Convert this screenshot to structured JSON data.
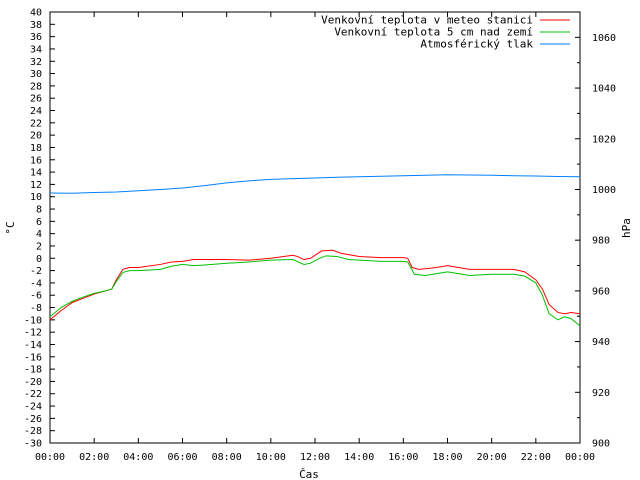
{
  "chart_data": {
    "type": "line",
    "xlabel": "Čas",
    "ylabel_left": "°C",
    "ylabel_right": "hPa",
    "x_ticks": [
      "00:00",
      "02:00",
      "04:00",
      "06:00",
      "08:00",
      "10:00",
      "12:00",
      "14:00",
      "16:00",
      "18:00",
      "20:00",
      "22:00",
      "00:00"
    ],
    "x_range_hours": [
      0,
      24
    ],
    "ylim_left": [
      -30,
      40
    ],
    "y_left_step": 2,
    "ylim_right": [
      900,
      1070
    ],
    "y_right_ticks": [
      900,
      920,
      940,
      960,
      980,
      1000,
      1020,
      1040,
      1060
    ],
    "grid": false,
    "legend_position": "top-right",
    "series": [
      {
        "name": "Venkovní teplota v meteo stanici",
        "color": "#ff0000",
        "axis": "left",
        "points": [
          [
            0,
            -10
          ],
          [
            0.5,
            -8.5
          ],
          [
            1,
            -7.2
          ],
          [
            1.5,
            -6.5
          ],
          [
            2,
            -5.8
          ],
          [
            2.5,
            -5.3
          ],
          [
            2.8,
            -5
          ],
          [
            3,
            -3.5
          ],
          [
            3.3,
            -1.8
          ],
          [
            3.6,
            -1.5
          ],
          [
            4,
            -1.5
          ],
          [
            5,
            -1
          ],
          [
            5.5,
            -0.6
          ],
          [
            6,
            -0.5
          ],
          [
            6.5,
            -0.2
          ],
          [
            8,
            -0.2
          ],
          [
            9,
            -0.3
          ],
          [
            10,
            0
          ],
          [
            11,
            0.5
          ],
          [
            11.2,
            0.3
          ],
          [
            11.5,
            -0.2
          ],
          [
            11.8,
            0
          ],
          [
            12.3,
            1.2
          ],
          [
            12.8,
            1.3
          ],
          [
            13.2,
            0.8
          ],
          [
            14,
            0.3
          ],
          [
            15,
            0.1
          ],
          [
            16,
            0.1
          ],
          [
            16.2,
            0
          ],
          [
            16.4,
            -1.5
          ],
          [
            16.7,
            -1.8
          ],
          [
            17,
            -1.7
          ],
          [
            17.5,
            -1.5
          ],
          [
            18,
            -1.2
          ],
          [
            18.5,
            -1.5
          ],
          [
            19,
            -1.8
          ],
          [
            20,
            -1.8
          ],
          [
            21,
            -1.8
          ],
          [
            21.5,
            -2.2
          ],
          [
            22,
            -3.5
          ],
          [
            22.3,
            -5
          ],
          [
            22.6,
            -7.5
          ],
          [
            23,
            -8.8
          ],
          [
            23.3,
            -9
          ],
          [
            23.6,
            -8.8
          ],
          [
            24,
            -9
          ]
        ]
      },
      {
        "name": "Venkovní teplota 5 cm nad zemí",
        "color": "#00c000",
        "axis": "left",
        "points": [
          [
            0,
            -9.5
          ],
          [
            0.5,
            -8
          ],
          [
            1,
            -7
          ],
          [
            1.5,
            -6.3
          ],
          [
            2,
            -5.7
          ],
          [
            2.5,
            -5.3
          ],
          [
            2.8,
            -5
          ],
          [
            3,
            -3.8
          ],
          [
            3.3,
            -2.3
          ],
          [
            3.6,
            -2
          ],
          [
            4,
            -2
          ],
          [
            5,
            -1.8
          ],
          [
            5.5,
            -1.3
          ],
          [
            6,
            -1
          ],
          [
            6.5,
            -1.2
          ],
          [
            7,
            -1.1
          ],
          [
            8,
            -0.8
          ],
          [
            9,
            -0.6
          ],
          [
            10,
            -0.3
          ],
          [
            11,
            -0.2
          ],
          [
            11.5,
            -1
          ],
          [
            11.8,
            -0.8
          ],
          [
            12.2,
            0
          ],
          [
            12.5,
            0.4
          ],
          [
            13,
            0.3
          ],
          [
            13.5,
            -0.2
          ],
          [
            14,
            -0.3
          ],
          [
            15,
            -0.5
          ],
          [
            16,
            -0.5
          ],
          [
            16.2,
            -0.6
          ],
          [
            16.5,
            -2.6
          ],
          [
            17,
            -2.8
          ],
          [
            17.5,
            -2.5
          ],
          [
            18,
            -2.2
          ],
          [
            18.5,
            -2.5
          ],
          [
            19,
            -2.8
          ],
          [
            20,
            -2.6
          ],
          [
            21,
            -2.6
          ],
          [
            21.5,
            -2.9
          ],
          [
            22,
            -4
          ],
          [
            22.3,
            -6
          ],
          [
            22.6,
            -9
          ],
          [
            23,
            -10
          ],
          [
            23.3,
            -9.5
          ],
          [
            23.6,
            -9.8
          ],
          [
            24,
            -11
          ]
        ]
      },
      {
        "name": "Atmosférický tlak",
        "color": "#0080ff",
        "axis": "right",
        "points": [
          [
            0,
            998.6
          ],
          [
            1,
            998.5
          ],
          [
            2,
            998.8
          ],
          [
            3,
            999
          ],
          [
            4,
            999.5
          ],
          [
            5,
            1000
          ],
          [
            6,
            1000.6
          ],
          [
            7,
            1001.5
          ],
          [
            8,
            1002.6
          ],
          [
            9,
            1003.4
          ],
          [
            10,
            1004
          ],
          [
            11,
            1004.3
          ],
          [
            12,
            1004.5
          ],
          [
            13,
            1004.8
          ],
          [
            14,
            1005
          ],
          [
            15,
            1005.2
          ],
          [
            16,
            1005.4
          ],
          [
            17,
            1005.6
          ],
          [
            18,
            1005.8
          ],
          [
            19,
            1005.7
          ],
          [
            20,
            1005.6
          ],
          [
            21,
            1005.4
          ],
          [
            22,
            1005.3
          ],
          [
            23,
            1005.1
          ],
          [
            24,
            1005
          ]
        ]
      }
    ]
  }
}
